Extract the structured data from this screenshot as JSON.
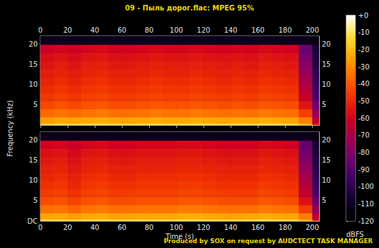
{
  "chart_data": {
    "type": "heatmap",
    "title": "09 - Пыль дорог.flac: MPEG 95%",
    "xlabel": "Time (s)",
    "ylabel": "Frequency (kHz)",
    "footer": "Produced by SOX on request by AUDCTECT TASK MANAGER",
    "xlim": [
      0,
      205
    ],
    "xticks": [
      0,
      20,
      40,
      60,
      80,
      100,
      120,
      140,
      160,
      180,
      200
    ],
    "ylim": [
      0,
      22.05
    ],
    "x_edges": [
      0,
      10,
      20,
      30,
      40,
      50,
      60,
      70,
      80,
      90,
      100,
      110,
      120,
      130,
      140,
      150,
      160,
      170,
      180,
      190,
      200,
      205
    ],
    "y_edges": [
      0,
      0.5,
      2,
      4,
      6,
      8,
      10,
      12,
      14,
      16,
      18,
      20,
      22.05
    ],
    "panels": [
      {
        "yticks": [
          5,
          10,
          15,
          20
        ],
        "cells": [
          [
            -16,
            -14,
            -15,
            -14,
            -13,
            -14,
            -15,
            -14,
            -13,
            -14,
            -14,
            -13,
            -14,
            -15,
            -14,
            -14,
            -13,
            -14,
            -15,
            -22,
            -55
          ],
          [
            -26,
            -24,
            -25,
            -24,
            -23,
            -24,
            -25,
            -24,
            -23,
            -24,
            -24,
            -23,
            -24,
            -25,
            -24,
            -24,
            -23,
            -24,
            -25,
            -32,
            -65
          ],
          [
            -36,
            -34,
            -36,
            -34,
            -33,
            -35,
            -35,
            -34,
            -33,
            -34,
            -34,
            -33,
            -34,
            -35,
            -34,
            -35,
            -33,
            -34,
            -35,
            -45,
            -75
          ],
          [
            -43,
            -41,
            -43,
            -41,
            -40,
            -42,
            -42,
            -41,
            -40,
            -41,
            -41,
            -40,
            -41,
            -42,
            -41,
            -42,
            -40,
            -41,
            -42,
            -55,
            -85
          ],
          [
            -47,
            -45,
            -47,
            -45,
            -44,
            -46,
            -46,
            -45,
            -44,
            -45,
            -45,
            -44,
            -45,
            -46,
            -45,
            -46,
            -44,
            -45,
            -46,
            -62,
            -92
          ],
          [
            -49,
            -47,
            -49,
            -47,
            -46,
            -48,
            -48,
            -47,
            -46,
            -47,
            -47,
            -46,
            -47,
            -48,
            -47,
            -48,
            -46,
            -47,
            -48,
            -66,
            -95
          ],
          [
            -51,
            -49,
            -51,
            -49,
            -48,
            -50,
            -50,
            -49,
            -48,
            -49,
            -49,
            -48,
            -49,
            -50,
            -49,
            -50,
            -48,
            -49,
            -50,
            -70,
            -98
          ],
          [
            -53,
            -51,
            -53,
            -51,
            -50,
            -52,
            -52,
            -51,
            -50,
            -51,
            -51,
            -50,
            -51,
            -52,
            -51,
            -52,
            -50,
            -51,
            -52,
            -74,
            -100
          ],
          [
            -55,
            -53,
            -55,
            -53,
            -52,
            -54,
            -54,
            -53,
            -52,
            -53,
            -53,
            -52,
            -53,
            -54,
            -53,
            -54,
            -52,
            -53,
            -54,
            -78,
            -102
          ],
          [
            -57,
            -55,
            -57,
            -55,
            -54,
            -56,
            -56,
            -55,
            -54,
            -55,
            -55,
            -54,
            -55,
            -56,
            -55,
            -56,
            -54,
            -55,
            -56,
            -82,
            -104
          ],
          [
            -61,
            -59,
            -61,
            -59,
            -58,
            -60,
            -60,
            -59,
            -58,
            -59,
            -59,
            -58,
            -59,
            -60,
            -59,
            -60,
            -58,
            -59,
            -60,
            -86,
            -106
          ],
          [
            -112,
            -112,
            -112,
            -112,
            -112,
            -112,
            -112,
            -112,
            -112,
            -112,
            -112,
            -112,
            -112,
            -112,
            -112,
            -112,
            -112,
            -112,
            -112,
            -112,
            -115
          ]
        ]
      },
      {
        "yticks": [
          {
            "value": 0,
            "label": "DC"
          },
          5,
          10,
          15,
          20
        ],
        "cells": [
          [
            -15,
            -14,
            -16,
            -14,
            -13,
            -15,
            -15,
            -14,
            -14,
            -14,
            -13,
            -13,
            -14,
            -15,
            -15,
            -14,
            -13,
            -14,
            -15,
            -23,
            -56
          ],
          [
            -25,
            -24,
            -26,
            -24,
            -23,
            -25,
            -25,
            -24,
            -24,
            -24,
            -23,
            -23,
            -24,
            -25,
            -25,
            -24,
            -23,
            -24,
            -25,
            -33,
            -66
          ],
          [
            -35,
            -34,
            -37,
            -34,
            -33,
            -35,
            -35,
            -34,
            -34,
            -34,
            -33,
            -33,
            -34,
            -35,
            -35,
            -35,
            -33,
            -34,
            -35,
            -46,
            -76
          ],
          [
            -42,
            -41,
            -44,
            -41,
            -40,
            -42,
            -42,
            -41,
            -41,
            -41,
            -40,
            -40,
            -41,
            -42,
            -42,
            -42,
            -40,
            -41,
            -42,
            -56,
            -86
          ],
          [
            -46,
            -45,
            -48,
            -45,
            -44,
            -46,
            -46,
            -45,
            -45,
            -45,
            -44,
            -44,
            -45,
            -46,
            -46,
            -46,
            -44,
            -45,
            -46,
            -63,
            -93
          ],
          [
            -48,
            -47,
            -50,
            -47,
            -46,
            -48,
            -48,
            -47,
            -47,
            -47,
            -46,
            -46,
            -47,
            -48,
            -48,
            -48,
            -46,
            -47,
            -48,
            -67,
            -96
          ],
          [
            -50,
            -49,
            -52,
            -49,
            -48,
            -50,
            -50,
            -49,
            -49,
            -49,
            -48,
            -48,
            -49,
            -50,
            -50,
            -50,
            -48,
            -49,
            -50,
            -71,
            -99
          ],
          [
            -52,
            -51,
            -54,
            -51,
            -50,
            -52,
            -52,
            -51,
            -51,
            -51,
            -50,
            -50,
            -51,
            -52,
            -52,
            -52,
            -50,
            -51,
            -52,
            -75,
            -101
          ],
          [
            -54,
            -53,
            -56,
            -53,
            -52,
            -54,
            -54,
            -53,
            -53,
            -53,
            -52,
            -52,
            -53,
            -54,
            -54,
            -54,
            -52,
            -53,
            -54,
            -79,
            -103
          ],
          [
            -56,
            -55,
            -58,
            -55,
            -54,
            -56,
            -56,
            -55,
            -55,
            -55,
            -54,
            -54,
            -55,
            -56,
            -56,
            -56,
            -54,
            -55,
            -56,
            -83,
            -105
          ],
          [
            -60,
            -59,
            -62,
            -59,
            -58,
            -60,
            -60,
            -59,
            -59,
            -59,
            -58,
            -58,
            -59,
            -60,
            -60,
            -60,
            -58,
            -59,
            -60,
            -87,
            -107
          ],
          [
            -112,
            -112,
            -112,
            -112,
            -112,
            -112,
            -112,
            -112,
            -112,
            -112,
            -112,
            -112,
            -112,
            -112,
            -112,
            -112,
            -112,
            -112,
            -112,
            -112,
            -115
          ]
        ]
      }
    ],
    "colorbar": {
      "label": "dBFS",
      "range": [
        -120,
        0
      ],
      "ticks": [
        {
          "value": 0,
          "label": "+0"
        },
        -10,
        -20,
        -30,
        -40,
        -50,
        -60,
        -70,
        -80,
        -90,
        -100,
        -110,
        -120
      ]
    }
  }
}
